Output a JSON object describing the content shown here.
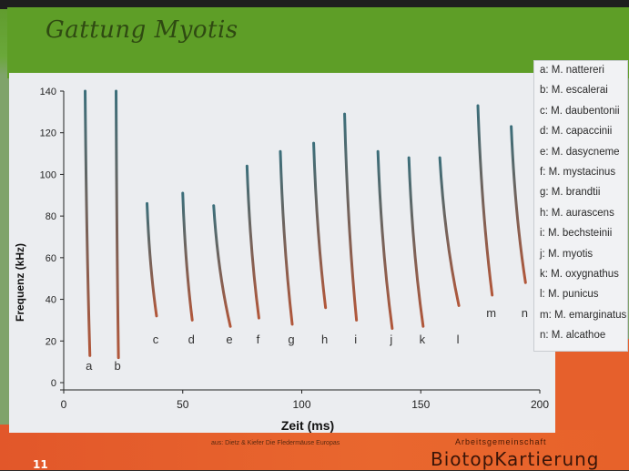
{
  "slide": {
    "title": "Gattung Myotis",
    "source_note": "aus: Dietz & Kiefer Die Fledermäuse Europas",
    "org_small": "Arbeitsgemeinschaft",
    "org_big": "BiotopKartierung",
    "slide_number": "11"
  },
  "legend": [
    "a: M. nattereri",
    "b: M. escalerai",
    "c: M. daubentonii",
    "d: M. capaccinii",
    "e: M. dasycneme",
    "f: M. mystacinus",
    "g: M. brandtii",
    "h: M. aurascens",
    "i: M. bechsteinii",
    "j: M. myotis",
    "k: M. oxygnathus",
    "l: M. punicus",
    "m: M. emarginatus",
    "n: M. alcathoe"
  ],
  "colors": {
    "call_top": "#3b6e7a",
    "call_bottom": "#b2573a"
  },
  "chart_data": {
    "type": "line",
    "xlabel": "Zeit (ms)",
    "ylabel": "Frequenz (kHz)",
    "xlim": [
      0,
      200
    ],
    "ylim": [
      0,
      140
    ],
    "xticks": [
      "0",
      "50",
      "100",
      "150",
      "200"
    ],
    "yticks": [
      "0",
      "20",
      "40",
      "60",
      "80",
      "100",
      "120",
      "140"
    ],
    "grid": false,
    "calls": [
      {
        "label": "a",
        "x_start": 9,
        "x_end": 11,
        "f_start": 140,
        "f_end": 13
      },
      {
        "label": "b",
        "x_start": 22,
        "x_end": 23,
        "f_start": 140,
        "f_end": 12
      },
      {
        "label": "c",
        "x_start": 35,
        "x_end": 39,
        "f_start": 86,
        "f_end": 32
      },
      {
        "label": "d",
        "x_start": 50,
        "x_end": 54,
        "f_start": 91,
        "f_end": 30
      },
      {
        "label": "e",
        "x_start": 63,
        "x_end": 70,
        "f_start": 85,
        "f_end": 27
      },
      {
        "label": "f",
        "x_start": 77,
        "x_end": 82,
        "f_start": 104,
        "f_end": 31
      },
      {
        "label": "g",
        "x_start": 91,
        "x_end": 96,
        "f_start": 111,
        "f_end": 28
      },
      {
        "label": "h",
        "x_start": 105,
        "x_end": 110,
        "f_start": 115,
        "f_end": 36
      },
      {
        "label": "i",
        "x_start": 118,
        "x_end": 123,
        "f_start": 129,
        "f_end": 30
      },
      {
        "label": "j",
        "x_start": 132,
        "x_end": 138,
        "f_start": 111,
        "f_end": 26
      },
      {
        "label": "k",
        "x_start": 145,
        "x_end": 151,
        "f_start": 108,
        "f_end": 27
      },
      {
        "label": "l",
        "x_start": 158,
        "x_end": 166,
        "f_start": 108,
        "f_end": 37
      },
      {
        "label": "m",
        "x_start": 174,
        "x_end": 180,
        "f_start": 133,
        "f_end": 42
      },
      {
        "label": "n",
        "x_start": 188,
        "x_end": 194,
        "f_start": 123,
        "f_end": 48
      }
    ]
  }
}
